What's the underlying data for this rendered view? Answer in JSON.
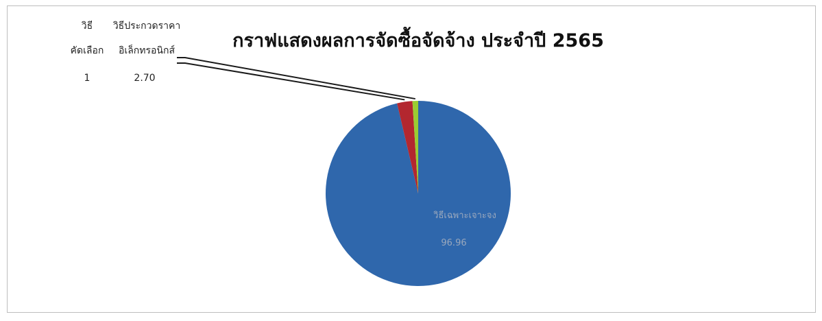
{
  "chart_data": {
    "type": "pie",
    "title": "กราฟแสดงผลการจัดซื้อจัดจ้าง ประจำปี 2565",
    "slices": [
      {
        "label": "วิธีเฉพาะเจาะจง",
        "value": 96.96,
        "display_value": "96.96",
        "color": "#2f67ac"
      },
      {
        "label": "วิธีประกวดราคาอิเล็กทรอนิกส์",
        "label_lines": [
          "วิธีประกวดราคา",
          "อิเล็กทรอนิกส์"
        ],
        "value": 2.7,
        "display_value": "2.70",
        "color": "#b3272f"
      },
      {
        "label": "วิธีคัดเลือก",
        "label_lines": [
          "วิธี",
          "คัดเลือก"
        ],
        "value": 1,
        "display_value": "1",
        "color": "#9acd32"
      }
    ],
    "legend": "none",
    "label_color_inside": "#9aa8bd"
  }
}
